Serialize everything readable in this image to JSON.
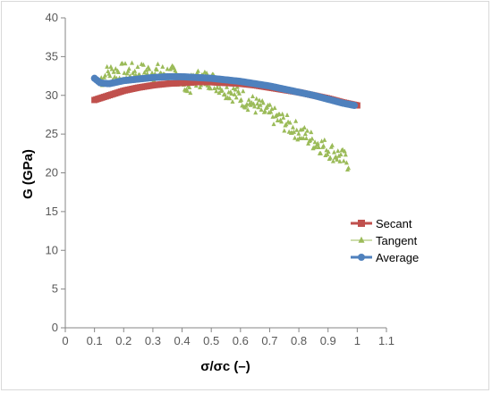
{
  "chart_data": {
    "type": "scatter",
    "title": "",
    "xlabel": "σ/σc (–)",
    "ylabel": "G (GPa)",
    "xlim": [
      0,
      1.1
    ],
    "ylim": [
      0,
      40
    ],
    "x_ticks": [
      "0",
      "0.1",
      "0.2",
      "0.3",
      "0.4",
      "0.5",
      "0.6",
      "0.7",
      "0.8",
      "0.9",
      "1",
      "1.1"
    ],
    "y_ticks": [
      "0",
      "5",
      "10",
      "15",
      "20",
      "25",
      "30",
      "35",
      "40"
    ],
    "grid": false,
    "legend_position": "right",
    "series": [
      {
        "name": "Secant",
        "color": "#c0504d",
        "marker": "square",
        "x": [
          0.1,
          0.15,
          0.2,
          0.25,
          0.3,
          0.35,
          0.4,
          0.45,
          0.5,
          0.55,
          0.6,
          0.65,
          0.7,
          0.75,
          0.8,
          0.85,
          0.9,
          0.95,
          1.0
        ],
        "y": [
          29.4,
          30.0,
          30.6,
          31.0,
          31.3,
          31.5,
          31.6,
          31.7,
          31.7,
          31.6,
          31.5,
          31.3,
          31.0,
          30.7,
          30.4,
          30.0,
          29.6,
          29.1,
          28.7
        ]
      },
      {
        "name": "Tangent",
        "color": "#9bbb59",
        "marker": "triangle",
        "x": [
          0.12,
          0.15,
          0.2,
          0.25,
          0.3,
          0.35,
          0.4,
          0.41,
          0.45,
          0.5,
          0.55,
          0.6,
          0.65,
          0.7,
          0.75,
          0.8,
          0.85,
          0.9,
          0.95,
          0.97
        ],
        "y": [
          32.0,
          33.0,
          33.0,
          33.0,
          33.0,
          32.8,
          32.4,
          30.5,
          32.2,
          32.0,
          30.8,
          29.8,
          28.7,
          27.6,
          26.5,
          25.3,
          24.1,
          23.0,
          21.9,
          21.3
        ],
        "spread": 1.2
      },
      {
        "name": "Average",
        "color": "#4f81bd",
        "marker": "circle",
        "x": [
          0.1,
          0.12,
          0.15,
          0.2,
          0.25,
          0.3,
          0.35,
          0.4,
          0.45,
          0.5,
          0.55,
          0.6,
          0.65,
          0.7,
          0.75,
          0.8,
          0.85,
          0.9,
          0.95,
          0.99
        ],
        "y": [
          32.2,
          31.6,
          31.5,
          31.9,
          32.1,
          32.3,
          32.4,
          32.4,
          32.3,
          32.2,
          32.0,
          31.8,
          31.5,
          31.2,
          30.8,
          30.4,
          30.0,
          29.5,
          29.0,
          28.7
        ]
      }
    ]
  }
}
